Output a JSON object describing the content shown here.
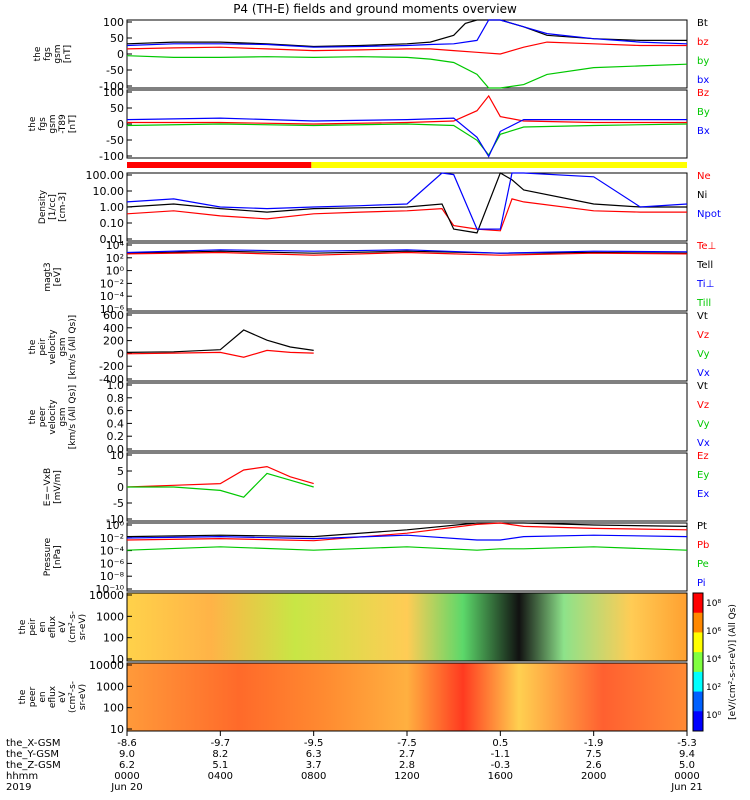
{
  "title": "P4 (TH-E) fields and ground moments overview",
  "colors": {
    "black": "#000000",
    "red": "#ff0000",
    "green": "#00c800",
    "blue": "#0000ff",
    "yellow": "#ffff00"
  },
  "panels": [
    {
      "id": "fgs-gsm",
      "ylabel": [
        "the",
        "fgs",
        "gsm",
        "[nT]"
      ],
      "ticks": [
        "100",
        "50",
        "0",
        "-50",
        "-100"
      ],
      "ylim": [
        -100,
        100
      ],
      "legend": [
        "Bt",
        "bz",
        "by",
        "bx"
      ],
      "legend_colors": [
        "black",
        "red",
        "green",
        "blue"
      ]
    },
    {
      "id": "fgs-gsm-t89",
      "ylabel": [
        "the",
        "fgs",
        "gsm",
        "-T89",
        "[nT]"
      ],
      "ticks": [
        "100",
        "50",
        "0",
        "-50",
        "-100"
      ],
      "ylim": [
        -120,
        110
      ],
      "legend": [
        "Bz",
        "By",
        "Bx"
      ],
      "legend_colors": [
        "red",
        "green",
        "blue"
      ]
    },
    {
      "id": "density",
      "ylabel": [
        "Density",
        "[1/cc]",
        "[cm-3]"
      ],
      "ticks": [
        "100.00",
        "10.00",
        "1.00",
        "0.10",
        "0.01"
      ],
      "ylim": [
        0.01,
        100
      ],
      "legend": [
        "Ne",
        "Ni",
        "Npot"
      ],
      "legend_colors": [
        "red",
        "black",
        "blue"
      ]
    },
    {
      "id": "temperature",
      "ylabel": [
        "magt3",
        "[eV]"
      ],
      "ticks": [
        "10⁴",
        "10²",
        "10⁰",
        "10⁻²",
        "10⁻⁴",
        "10⁻⁶"
      ],
      "ylim": [
        -6,
        4
      ],
      "legend": [
        "Te⊥",
        "Tell",
        "Ti⊥",
        "Till"
      ],
      "legend_colors": [
        "red",
        "black",
        "blue",
        "green"
      ]
    },
    {
      "id": "peir-velocity",
      "ylabel": [
        "the",
        "peir",
        "velocity",
        "gsm",
        "[km/s (All Qs)]"
      ],
      "ticks": [
        "600",
        "400",
        "200",
        "0",
        "-200",
        "-400"
      ],
      "ylim": [
        -400,
        600
      ],
      "legend": [
        "Vt",
        "Vz",
        "Vy",
        "Vx"
      ],
      "legend_colors": [
        "black",
        "red",
        "green",
        "blue"
      ]
    },
    {
      "id": "peer-velocity",
      "ylabel": [
        "the",
        "peer",
        "velocity",
        "gsm",
        "[km/s (All Qs)]"
      ],
      "ticks": [
        "1.0",
        "0.8",
        "0.6",
        "0.4",
        "0.2",
        "0.0"
      ],
      "ylim": [
        0,
        1
      ],
      "legend": [
        "Vt",
        "Vz",
        "Vy",
        "Vx"
      ],
      "legend_colors": [
        "black",
        "red",
        "green",
        "blue"
      ]
    },
    {
      "id": "e-field",
      "ylabel": [
        "E=−VxB",
        "[mV/m]"
      ],
      "ticks": [
        "10",
        "5",
        "0",
        "-5",
        "-10"
      ],
      "ylim": [
        -10,
        10
      ],
      "legend": [
        "Ez",
        "Ey",
        "Ex"
      ],
      "legend_colors": [
        "red",
        "green",
        "blue"
      ]
    },
    {
      "id": "pressure",
      "ylabel": [
        "Pressure",
        "[nPa]"
      ],
      "ticks": [
        "10⁰",
        "10⁻²",
        "10⁻⁴",
        "10⁻⁶",
        "10⁻⁸",
        "10⁻¹⁰"
      ],
      "ylim": [
        -10,
        0
      ],
      "legend": [
        "Pt",
        "Pb",
        "Pe",
        "Pi"
      ],
      "legend_colors": [
        "black",
        "red",
        "green",
        "blue"
      ]
    },
    {
      "id": "peir-spectrogram",
      "ylabel": [
        "the",
        "peir",
        "en",
        "eflux",
        "eV",
        "(cm²-s-",
        "sr-eV)"
      ],
      "ticks": [
        "10000",
        "1000",
        "100",
        "10"
      ]
    },
    {
      "id": "peer-spectrogram",
      "ylabel": [
        "the",
        "peer",
        "en",
        "eflux",
        "eV",
        "(cm²-s-",
        "sr-eV)"
      ],
      "ticks": [
        "10000",
        "1000",
        "100",
        "10"
      ]
    }
  ],
  "colorbar": {
    "label": "[eV/(cm²-s-sr-eV)] (All Qs)",
    "ticks": [
      "10⁸",
      "10⁶",
      "10⁴",
      "10²",
      "10⁰"
    ]
  },
  "xaxis": {
    "row_labels": [
      "the_X-GSM",
      "the_Y-GSM",
      "the_Z-GSM",
      "hhmm",
      "2019"
    ],
    "columns": [
      {
        "x": "-8.6",
        "y": "9.0",
        "z": "6.2",
        "hhmm": "0000",
        "date": "Jun 20"
      },
      {
        "x": "-9.7",
        "y": "8.2",
        "z": "5.1",
        "hhmm": "0400",
        "date": ""
      },
      {
        "x": "-9.5",
        "y": "6.3",
        "z": "3.7",
        "hhmm": "0800",
        "date": ""
      },
      {
        "x": "-7.5",
        "y": "2.7",
        "z": "2.8",
        "hhmm": "1200",
        "date": ""
      },
      {
        "x": "0.5",
        "y": "-1.1",
        "z": "-0.3",
        "hhmm": "1600",
        "date": ""
      },
      {
        "x": "-1.9",
        "y": "7.5",
        "z": "2.6",
        "hhmm": "2000",
        "date": ""
      },
      {
        "x": "-5.3",
        "y": "9.4",
        "z": "5.0",
        "hhmm": "0000",
        "date": "Jun 21"
      }
    ]
  },
  "chart_data": {
    "type": "line",
    "title": "P4 (TH-E) fields and ground moments overview",
    "x_unit": "hours since 2019 Jun 20 00:00",
    "xlim": [
      0,
      24
    ],
    "series": [
      {
        "panel": "fgs-gsm",
        "name": "Bt",
        "x": [
          0,
          2,
          4,
          6,
          8,
          10,
          12,
          13,
          14,
          14.5,
          15,
          16,
          17,
          18,
          20,
          22,
          24
        ],
        "values": [
          30,
          35,
          35,
          30,
          22,
          25,
          30,
          35,
          55,
          90,
          100,
          100,
          80,
          55,
          45,
          40,
          40
        ]
      },
      {
        "panel": "fgs-gsm",
        "name": "bz",
        "x": [
          0,
          2,
          4,
          6,
          8,
          10,
          12,
          13,
          14,
          15,
          16,
          17,
          18,
          20,
          22,
          24
        ],
        "values": [
          15,
          18,
          20,
          15,
          10,
          12,
          15,
          15,
          10,
          5,
          0,
          20,
          35,
          30,
          25,
          25
        ]
      },
      {
        "panel": "fgs-gsm",
        "name": "by",
        "x": [
          0,
          2,
          4,
          6,
          8,
          10,
          12,
          13,
          14,
          15,
          15.5,
          16,
          17,
          18,
          20,
          22,
          24
        ],
        "values": [
          -5,
          -10,
          -10,
          -8,
          -10,
          -8,
          -10,
          -15,
          -25,
          -60,
          -100,
          -100,
          -90,
          -60,
          -40,
          -35,
          -30
        ]
      },
      {
        "panel": "fgs-gsm",
        "name": "bx",
        "x": [
          0,
          2,
          4,
          6,
          8,
          10,
          12,
          13,
          14,
          15,
          15.5,
          16,
          17,
          18,
          20,
          22,
          24
        ],
        "values": [
          25,
          30,
          30,
          28,
          20,
          22,
          25,
          28,
          30,
          40,
          100,
          100,
          80,
          60,
          45,
          35,
          30
        ]
      },
      {
        "panel": "fgs-gsm-t89",
        "name": "Bz",
        "x": [
          0,
          4,
          8,
          12,
          14,
          15,
          15.5,
          16,
          17,
          20,
          24
        ],
        "values": [
          0,
          0,
          -5,
          0,
          5,
          40,
          90,
          20,
          5,
          0,
          0
        ]
      },
      {
        "panel": "fgs-gsm-t89",
        "name": "By",
        "x": [
          0,
          4,
          8,
          12,
          14,
          15,
          15.5,
          16,
          17,
          20,
          24
        ],
        "values": [
          -10,
          -5,
          -10,
          -5,
          -10,
          -60,
          -110,
          -40,
          -15,
          -10,
          -5
        ]
      },
      {
        "panel": "fgs-gsm-t89",
        "name": "Bx",
        "x": [
          0,
          4,
          8,
          12,
          14,
          15,
          15.5,
          16,
          17,
          20,
          24
        ],
        "values": [
          10,
          15,
          5,
          10,
          15,
          -50,
          -115,
          -30,
          10,
          10,
          10
        ]
      },
      {
        "panel": "density",
        "name": "Ne",
        "x": [
          0,
          2,
          4,
          6,
          8,
          10,
          12,
          13.5,
          14,
          15,
          16,
          16.5,
          17,
          20,
          22,
          24
        ],
        "values": [
          0.4,
          0.6,
          0.3,
          0.2,
          0.4,
          0.5,
          0.6,
          0.8,
          0.08,
          0.05,
          0.04,
          3,
          2,
          0.6,
          0.5,
          0.5
        ]
      },
      {
        "panel": "density",
        "name": "Ni",
        "x": [
          0,
          2,
          4,
          6,
          8,
          10,
          12,
          13.5,
          14,
          15,
          16,
          16.5,
          17,
          20,
          22,
          24
        ],
        "values": [
          1,
          1.5,
          0.8,
          0.5,
          0.8,
          0.9,
          1,
          1.5,
          0.05,
          0.03,
          100,
          40,
          10,
          1.5,
          1,
          1
        ]
      },
      {
        "panel": "density",
        "name": "Npot",
        "x": [
          0,
          2,
          4,
          6,
          8,
          10,
          12,
          13.5,
          14,
          15,
          16,
          16.5,
          17,
          20,
          22,
          24
        ],
        "values": [
          2,
          3,
          1,
          0.8,
          1,
          1.2,
          1.5,
          100,
          80,
          0.05,
          0.05,
          100,
          100,
          60,
          1,
          1.5
        ]
      },
      {
        "panel": "temperature",
        "name": "Tell",
        "x": [
          0,
          4,
          8,
          12,
          16,
          20,
          24
        ],
        "values": [
          2.5,
          2.8,
          2.5,
          2.8,
          2.5,
          2.6,
          2.5
        ]
      },
      {
        "panel": "temperature",
        "name": "Te⊥",
        "x": [
          0,
          4,
          8,
          12,
          16,
          20,
          24
        ],
        "values": [
          2.4,
          2.6,
          2.2,
          2.6,
          2.2,
          2.5,
          2.4
        ]
      },
      {
        "panel": "temperature",
        "name": "Ti⊥",
        "x": [
          0,
          4,
          8,
          12,
          16,
          20,
          24
        ],
        "values": [
          2.6,
          3,
          2.8,
          3,
          2.5,
          2.8,
          2.7
        ]
      },
      {
        "panel": "peir-velocity",
        "name": "Vt",
        "x": [
          0,
          2,
          4,
          5,
          6,
          7,
          8
        ],
        "values": [
          20,
          30,
          60,
          350,
          200,
          100,
          50
        ]
      },
      {
        "panel": "peir-velocity",
        "name": "Vz",
        "x": [
          0,
          2,
          4,
          5,
          6,
          7,
          8
        ],
        "values": [
          0,
          10,
          20,
          -50,
          50,
          20,
          10
        ]
      },
      {
        "panel": "e-field",
        "name": "Ez",
        "x": [
          0,
          2,
          4,
          5,
          6,
          7,
          8
        ],
        "values": [
          0,
          0.5,
          1,
          5,
          6,
          3,
          1
        ]
      },
      {
        "panel": "e-field",
        "name": "Ey",
        "x": [
          0,
          2,
          4,
          5,
          6,
          7,
          8
        ],
        "values": [
          0,
          0,
          -1,
          -3,
          4,
          2,
          0
        ]
      },
      {
        "panel": "pressure",
        "name": "Pt",
        "x": [
          0,
          4,
          8,
          12,
          15,
          16,
          17,
          20,
          24
        ],
        "values": [
          -2,
          -1.8,
          -2,
          -1,
          0.5,
          0.5,
          0,
          -0.3,
          -0.5
        ]
      },
      {
        "panel": "pressure",
        "name": "Pb",
        "x": [
          0,
          4,
          8,
          12,
          15,
          16,
          17,
          20,
          24
        ],
        "values": [
          -2.5,
          -2.3,
          -2.6,
          -1.5,
          -0.2,
          0,
          -0.5,
          -0.8,
          -1
        ]
      },
      {
        "panel": "pressure",
        "name": "Pe",
        "x": [
          0,
          4,
          8,
          12,
          15,
          16,
          17,
          20,
          24
        ],
        "values": [
          -4,
          -3.5,
          -4,
          -3.5,
          -4,
          -3.8,
          -3.8,
          -3.5,
          -4
        ]
      },
      {
        "panel": "pressure",
        "name": "Pi",
        "x": [
          0,
          4,
          8,
          12,
          15,
          16,
          17,
          20,
          24
        ],
        "values": [
          -2.2,
          -2,
          -2.3,
          -1.8,
          -2.5,
          -2.5,
          -2,
          -1.8,
          -2
        ]
      }
    ],
    "bar_segments": [
      {
        "from": 0,
        "to": 7.9,
        "color": "red"
      },
      {
        "from": 7.9,
        "to": 24,
        "color": "yellow"
      }
    ]
  }
}
